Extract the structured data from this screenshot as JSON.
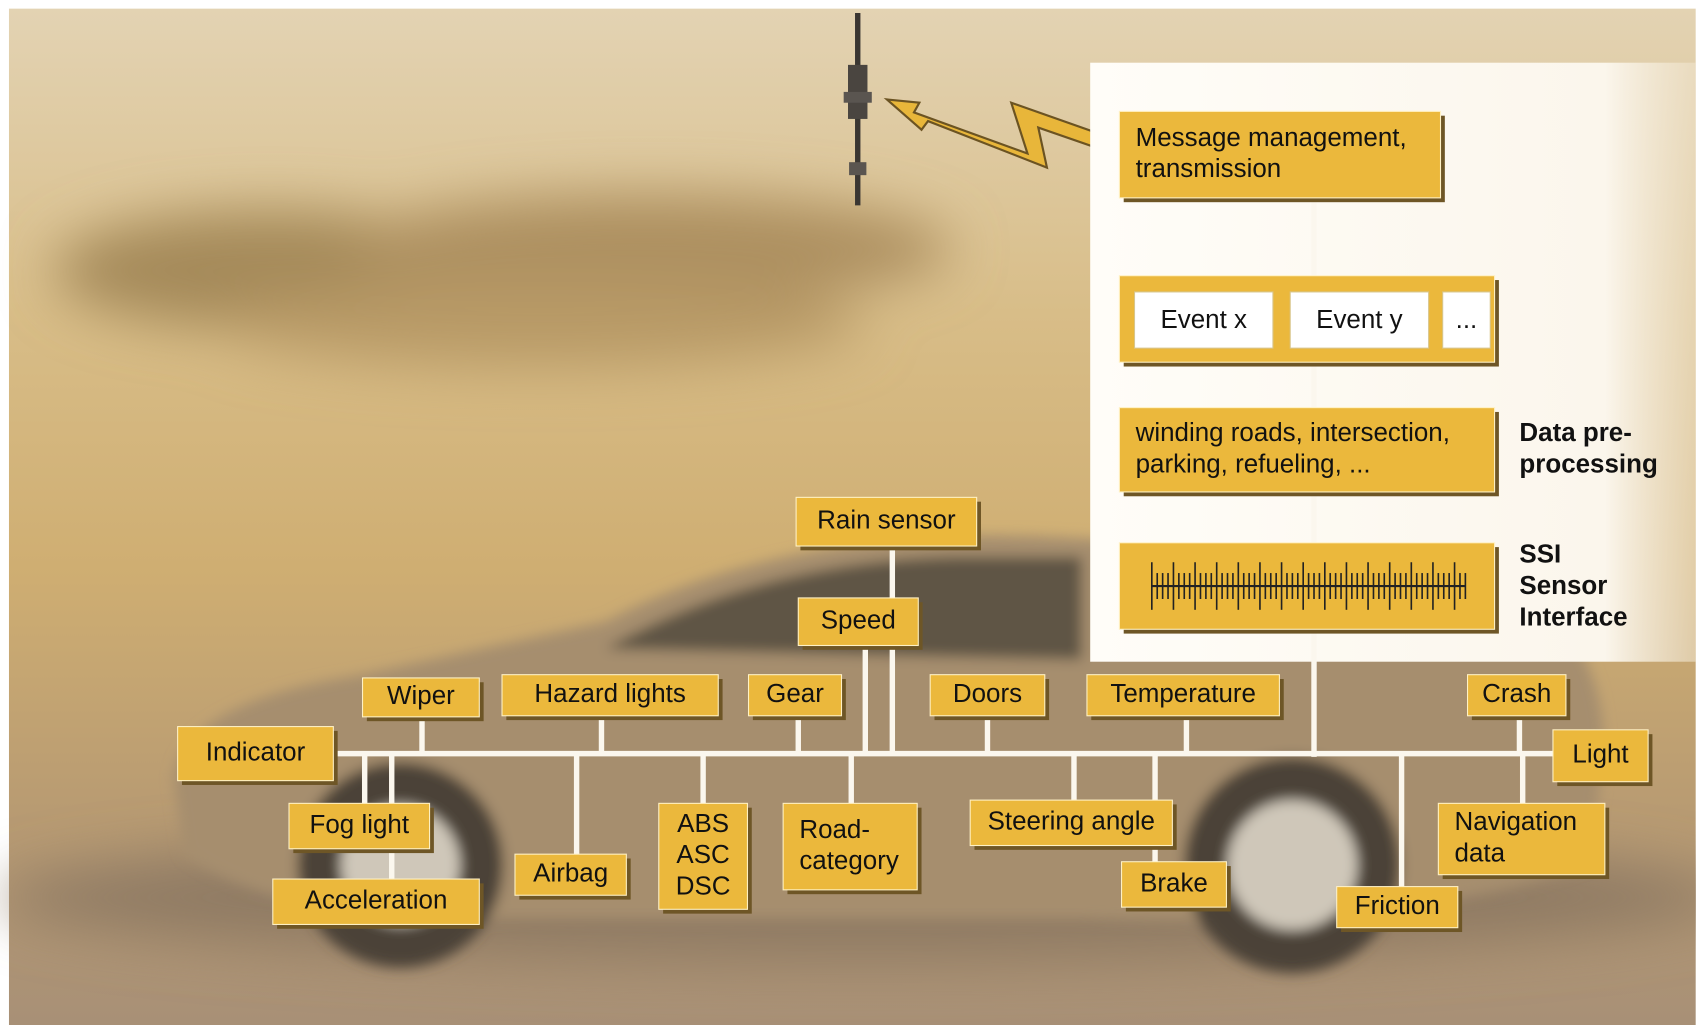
{
  "pipeline": {
    "message": [
      "Message management,",
      "transmission"
    ],
    "events": [
      "Event x",
      "Event y",
      "..."
    ],
    "preprocessing": [
      "winding roads, intersection,",
      "parking, refueling, ..."
    ],
    "preprocessing_label": [
      "Data pre-",
      "processing"
    ],
    "ssi_label": [
      "SSI",
      "Sensor",
      "Interface"
    ]
  },
  "sensors": [
    [
      "Rain sensor"
    ],
    [
      "Speed"
    ],
    [
      "Wiper"
    ],
    [
      "Hazard lights"
    ],
    [
      "Gear"
    ],
    [
      "Doors"
    ],
    [
      "Temperature"
    ],
    [
      "Crash"
    ],
    [
      "Indicator"
    ],
    [
      "Light"
    ],
    [
      "Fog light"
    ],
    [
      "Acceleration"
    ],
    [
      "Airbag"
    ],
    [
      "ABS",
      "ASC",
      "DSC"
    ],
    [
      "Road-",
      "category"
    ],
    [
      "Steering angle"
    ],
    [
      "Brake"
    ],
    [
      "Friction"
    ],
    [
      "Navigation",
      "data"
    ]
  ]
}
